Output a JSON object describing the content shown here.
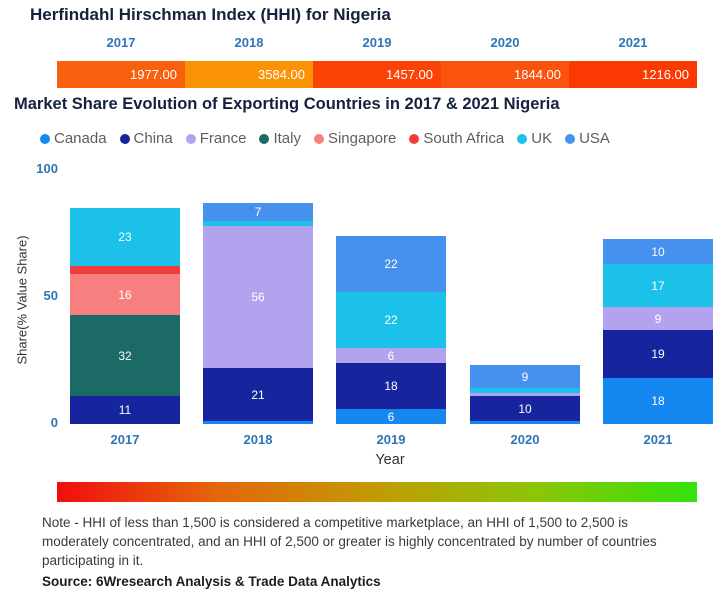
{
  "chart_data": [
    {
      "type": "table",
      "title": "Herfindahl Hirschman Index (HHI) for Nigeria",
      "columns": [
        "2017",
        "2018",
        "2019",
        "2020",
        "2021"
      ],
      "values": [
        1977.0,
        3584.0,
        1457.0,
        1844.0,
        1216.0
      ],
      "display_values": [
        "1977.00",
        "3584.00",
        "1457.00",
        "1844.00",
        "1216.00"
      ],
      "cell_colors": [
        "#f9600e",
        "#fa9306",
        "#fb4307",
        "#fa530e",
        "#fb3a03"
      ]
    },
    {
      "type": "bar",
      "stacked": true,
      "title": "Market Share Evolution of Exporting Countries in 2017 & 2021 Nigeria",
      "xlabel": "Year",
      "ylabel": "Share(% Value Share)",
      "ylim": [
        0,
        100
      ],
      "yticks": [
        0,
        50,
        100
      ],
      "grid": false,
      "legend_position": "top",
      "categories": [
        "2017",
        "2018",
        "2019",
        "2020",
        "2021"
      ],
      "series": [
        {
          "name": "Canada",
          "color": "#1487f0",
          "values": [
            0,
            1,
            6,
            1,
            18
          ],
          "labels": [
            null,
            null,
            "6",
            null,
            "18"
          ]
        },
        {
          "name": "China",
          "color": "#16259e",
          "values": [
            11,
            21,
            18,
            10,
            19
          ],
          "labels": [
            "11",
            "21",
            "18",
            "10",
            "19"
          ]
        },
        {
          "name": "France",
          "color": "#b3a3ee",
          "values": [
            0,
            56,
            6,
            1,
            9
          ],
          "labels": [
            null,
            "56",
            "6",
            null,
            "9"
          ]
        },
        {
          "name": "Italy",
          "color": "#1b6a66",
          "values": [
            32,
            0,
            0,
            0,
            0
          ],
          "labels": [
            "32",
            null,
            null,
            null,
            null
          ]
        },
        {
          "name": "Singapore",
          "color": "#f87f7f",
          "values": [
            16,
            0,
            0,
            0,
            0
          ],
          "labels": [
            "16",
            null,
            null,
            null,
            null
          ]
        },
        {
          "name": "South Africa",
          "color": "#f23d3d",
          "values": [
            3,
            0,
            0,
            0,
            0
          ],
          "labels": [
            null,
            null,
            null,
            null,
            null
          ]
        },
        {
          "name": "UK",
          "color": "#1bc1e8",
          "values": [
            23,
            2,
            22,
            2,
            17
          ],
          "labels": [
            "23",
            null,
            "22",
            null,
            "17"
          ]
        },
        {
          "name": "USA",
          "color": "#4690ee",
          "values": [
            0,
            7,
            22,
            9,
            10
          ],
          "labels": [
            null,
            "7",
            "22",
            "9",
            "10"
          ]
        }
      ]
    }
  ],
  "colorbar": {
    "stops": [
      "#f20d0d",
      "#e4660a",
      "#c19b04",
      "#8cc607",
      "#32e20c"
    ]
  },
  "note": "Note - HHI of less than 1,500 is considered a competitive marketplace, an HHI of 1,500 to 2,500 is moderately concentrated, and an HHI of 2,500 or greater is highly concentrated by number of countries participating in it.",
  "source": "Source: 6Wresearch Analysis & Trade Data Analytics"
}
